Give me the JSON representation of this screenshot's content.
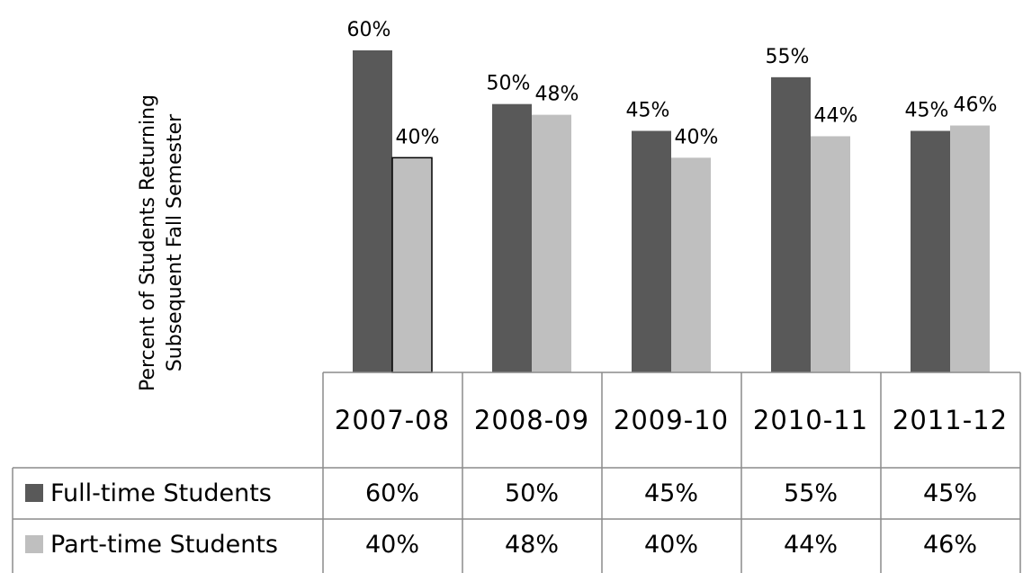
{
  "chart_data": {
    "type": "bar",
    "ylabel": "Percent of Students Returning Subsequent Fall Semester",
    "categories": [
      "2007-08",
      "2008-09",
      "2009-10",
      "2010-11",
      "2011-12"
    ],
    "series": [
      {
        "name": "Full-time Students",
        "values": [
          60,
          50,
          45,
          55,
          45
        ],
        "labels": [
          "60%",
          "50%",
          "45%",
          "55%",
          "45%"
        ],
        "color": "#595959"
      },
      {
        "name": "Part-time Students",
        "values": [
          40,
          48,
          40,
          44,
          46
        ],
        "labels": [
          "40%",
          "48%",
          "40%",
          "44%",
          "46%"
        ],
        "color": "#bfbfbf"
      }
    ],
    "ylim": [
      0,
      60
    ],
    "grid": false,
    "legend": "data-table"
  }
}
